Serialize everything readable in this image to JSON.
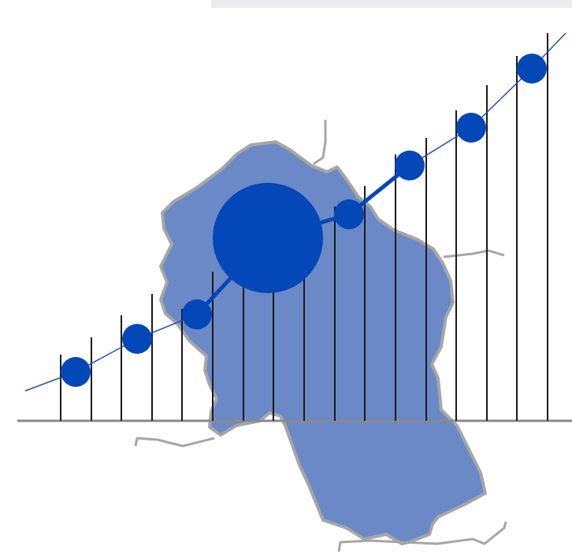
{
  "colors": {
    "background": "#ffffff",
    "top_bar": "#ebebed",
    "region_fill": "#6a89c6",
    "region_stroke": "#a6a6a6",
    "grey_line": "#a6a6a6",
    "baseline": "#8a8a8a",
    "vertical_lines": "#1a1a1a",
    "trend_line": "#1f4fb2",
    "markers": "#0447b8"
  },
  "icons": {
    "region": "region-map-shape",
    "marker": "filled-circle",
    "highlight": "large-filled-circle"
  },
  "scene": {
    "vertical_line_count": 17,
    "marker_count": 8,
    "highlighted_marker_index": 3
  }
}
